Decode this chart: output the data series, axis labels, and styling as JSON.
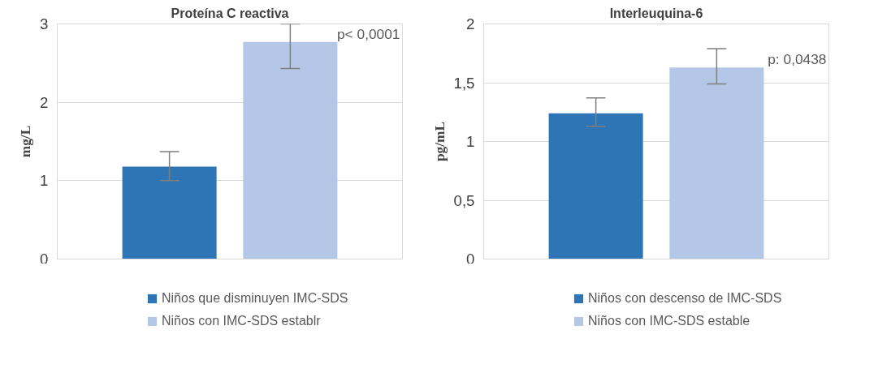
{
  "chart_data": [
    {
      "type": "bar",
      "title": "Proteína C reactiva",
      "ylabel": "mg/L",
      "categories": [
        null
      ],
      "series": [
        {
          "name": "Niños que disminuyen IMC-SDS",
          "color": "#2e75b6",
          "values": [
            1.18
          ],
          "errors": [
            [
              1.0,
              1.37
            ]
          ]
        },
        {
          "name": "Niños con IMC-SDS establr",
          "color": "#b4c7e7",
          "values": [
            2.77
          ],
          "errors": [
            [
              2.43,
              3.0
            ]
          ]
        }
      ],
      "ylim": [
        0,
        3
      ],
      "yticks": [
        0,
        1,
        2,
        3
      ],
      "grid": "y",
      "legend": "bottom",
      "annotations": [
        "p< 0,0001"
      ]
    },
    {
      "type": "bar",
      "title": "Interleuquina-6",
      "ylabel": "pg/mL",
      "categories": [
        null
      ],
      "series": [
        {
          "name": "Niños con descenso de IMC-SDS",
          "color": "#2e75b6",
          "values": [
            1.24
          ],
          "errors": [
            [
              1.13,
              1.37
            ]
          ]
        },
        {
          "name": "Niños con IMC-SDS estable",
          "color": "#b4c7e7",
          "values": [
            1.63
          ],
          "errors": [
            [
              1.49,
              1.79
            ]
          ]
        }
      ],
      "ylim": [
        0,
        2
      ],
      "yticks": [
        0,
        {
          "value": 0.5,
          "label": "0,5"
        },
        1,
        {
          "value": 1.5,
          "label": "1,5"
        },
        2
      ],
      "grid": "y",
      "legend": "bottom",
      "annotations": [
        "p: 0,0438"
      ]
    }
  ]
}
